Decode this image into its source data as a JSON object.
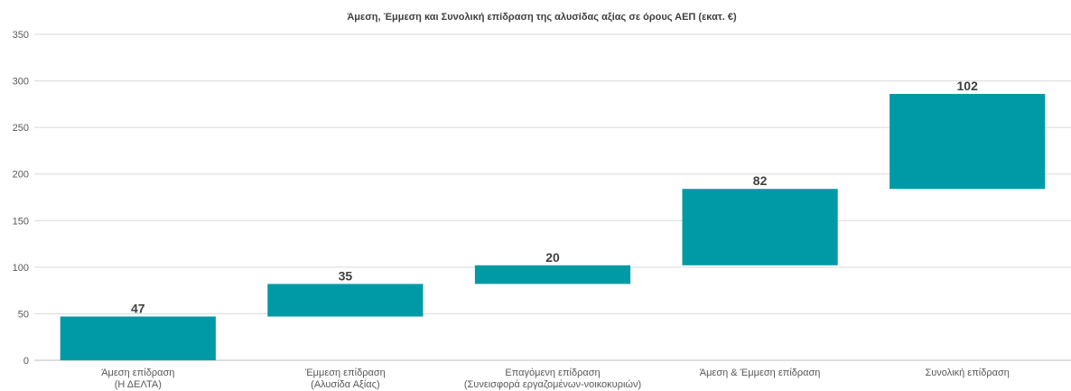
{
  "chart_data": {
    "type": "bar",
    "subtype": "waterfall",
    "title": "Άμεση, Έμμεση και Συνολική επίδραση της αλυσίδας αξίας σε όρους ΑΕΠ (εκατ. €)",
    "xlabel": "",
    "ylabel": "",
    "ylim": [
      0,
      350
    ],
    "yticks": [
      0,
      50,
      100,
      150,
      200,
      250,
      300,
      350
    ],
    "grid": true,
    "legend": "none",
    "bar_color": "#009aa6",
    "categories": [
      [
        "Άμεση επίδραση",
        "(Η ΔΕΛΤΑ)"
      ],
      [
        "Έμμεση επίδραση",
        "(Αλυσίδα Αξίας)"
      ],
      [
        "Επαγόμενη επίδραση",
        "(Συνεισφορά εργαζομένων-νοικοκυριών)"
      ],
      [
        "Άμεση & Έμμεση επίδραση"
      ],
      [
        "Συνολική επίδραση"
      ]
    ],
    "bars": [
      {
        "base": 0,
        "top": 47,
        "label": "47"
      },
      {
        "base": 47,
        "top": 82,
        "label": "35"
      },
      {
        "base": 82,
        "top": 102,
        "label": "20"
      },
      {
        "base": 102,
        "top": 184,
        "label": "82"
      },
      {
        "base": 184,
        "top": 286,
        "label": "102"
      }
    ]
  }
}
